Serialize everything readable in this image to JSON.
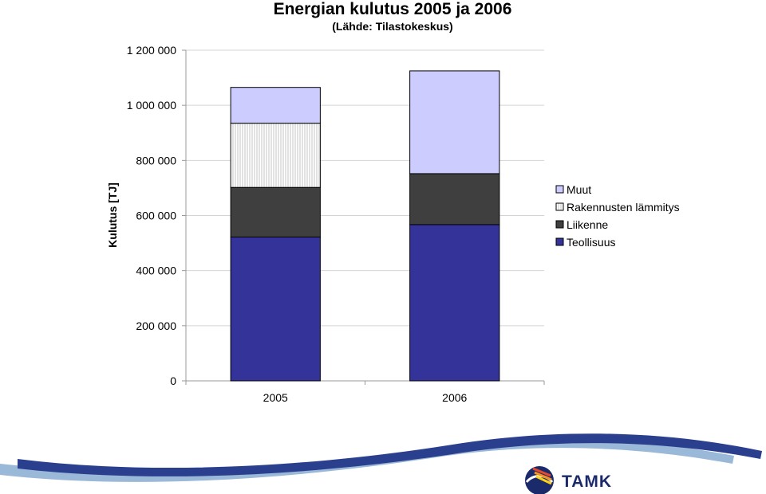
{
  "chart_data": {
    "type": "bar",
    "stacked": true,
    "title": "Energian kulutus 2005 ja 2006",
    "subtitle": "(Lähde: Tilastokeskus)",
    "xlabel": "",
    "ylabel": "Kulutus [TJ]",
    "categories": [
      "2005",
      "2006"
    ],
    "ylim": [
      0,
      1200000
    ],
    "yticks": [
      0,
      200000,
      400000,
      600000,
      800000,
      1000000,
      1200000
    ],
    "ytick_labels": [
      "0",
      "200 000",
      "400 000",
      "600 000",
      "800 000",
      "1 000 000",
      "1 200 000"
    ],
    "grid": true,
    "legend_position": "right",
    "series": [
      {
        "name": "Teollisuus",
        "values": [
          522000,
          567000
        ],
        "color": "#333399"
      },
      {
        "name": "Liikenne",
        "values": [
          180000,
          185000
        ],
        "color": "#3f3f3f"
      },
      {
        "name": "Rakennusten lämmitys",
        "values": [
          233000,
          0
        ],
        "color": "#ffffff",
        "pattern": "vertical-lines"
      },
      {
        "name": "Muut",
        "values": [
          130000,
          373000
        ],
        "color": "#ccccff"
      }
    ],
    "legend_order": [
      "Muut",
      "Rakennusten lämmitys",
      "Liikenne",
      "Teollisuus"
    ]
  },
  "logo": {
    "text": "TAMK"
  },
  "colors": {
    "footer_dark": "#2b3f8f",
    "footer_light": "#8fb0d4"
  }
}
